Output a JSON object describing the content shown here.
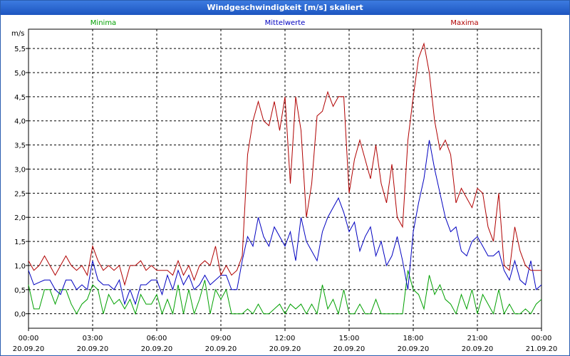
{
  "window": {
    "title": "Windgeschwindigkeit [m/s] skaliert"
  },
  "chart_data": {
    "type": "line",
    "title": "Windgeschwindigkeit [m/s] skaliert",
    "ylabel": "m/s",
    "xlabel": "",
    "ylim": [
      -0.3,
      5.9
    ],
    "xlim": [
      0,
      24
    ],
    "grid": true,
    "yticks": [
      "0,0",
      "0,5",
      "1,0",
      "1,5",
      "2,0",
      "2,5",
      "3,0",
      "3,5",
      "4,0",
      "4,5",
      "5,0",
      "5,5"
    ],
    "yticks_values": [
      0,
      0.5,
      1.0,
      1.5,
      2.0,
      2.5,
      3.0,
      3.5,
      4.0,
      4.5,
      5.0,
      5.5
    ],
    "xticks": [
      {
        "time": "00:00",
        "date": "20.09.20"
      },
      {
        "time": "03:00",
        "date": "20.09.20"
      },
      {
        "time": "06:00",
        "date": "20.09.20"
      },
      {
        "time": "09:00",
        "date": "20.09.20"
      },
      {
        "time": "12:00",
        "date": "20.09.20"
      },
      {
        "time": "15:00",
        "date": "20.09.20"
      },
      {
        "time": "18:00",
        "date": "20.09.20"
      },
      {
        "time": "21:00",
        "date": "20.09.20"
      },
      {
        "time": "00:00",
        "date": "21.09.20"
      }
    ],
    "xticks_values": [
      0,
      3,
      6,
      9,
      12,
      15,
      18,
      21,
      24
    ],
    "series": [
      {
        "name": "Minima",
        "color": "#00a000",
        "points": [
          [
            0,
            0.6
          ],
          [
            0.25,
            0.1
          ],
          [
            0.5,
            0.1
          ],
          [
            0.75,
            0.5
          ],
          [
            1,
            0.5
          ],
          [
            1.25,
            0.2
          ],
          [
            1.5,
            0.5
          ],
          [
            1.75,
            0.5
          ],
          [
            2,
            0.2
          ],
          [
            2.25,
            0.0
          ],
          [
            2.5,
            0.2
          ],
          [
            2.75,
            0.3
          ],
          [
            3,
            0.6
          ],
          [
            3.25,
            0.5
          ],
          [
            3.5,
            0.0
          ],
          [
            3.75,
            0.4
          ],
          [
            4,
            0.2
          ],
          [
            4.25,
            0.3
          ],
          [
            4.5,
            0.1
          ],
          [
            4.75,
            0.3
          ],
          [
            5,
            0.0
          ],
          [
            5.25,
            0.4
          ],
          [
            5.5,
            0.2
          ],
          [
            5.75,
            0.2
          ],
          [
            6,
            0.4
          ],
          [
            6.25,
            0.0
          ],
          [
            6.5,
            0.3
          ],
          [
            6.75,
            0.0
          ],
          [
            7,
            0.6
          ],
          [
            7.25,
            0.0
          ],
          [
            7.5,
            0.5
          ],
          [
            7.75,
            0.0
          ],
          [
            8,
            0.3
          ],
          [
            8.25,
            0.7
          ],
          [
            8.5,
            0.0
          ],
          [
            8.75,
            0.5
          ],
          [
            9,
            0.3
          ],
          [
            9.25,
            0.5
          ],
          [
            9.5,
            0.0
          ],
          [
            9.75,
            0.0
          ],
          [
            10,
            0.0
          ],
          [
            10.25,
            0.1
          ],
          [
            10.5,
            0.0
          ],
          [
            10.75,
            0.2
          ],
          [
            11,
            0.0
          ],
          [
            11.25,
            0.0
          ],
          [
            11.5,
            0.1
          ],
          [
            11.75,
            0.2
          ],
          [
            12,
            0.0
          ],
          [
            12.25,
            0.2
          ],
          [
            12.5,
            0.1
          ],
          [
            12.75,
            0.2
          ],
          [
            13,
            0.0
          ],
          [
            13.25,
            0.2
          ],
          [
            13.5,
            0.0
          ],
          [
            13.75,
            0.6
          ],
          [
            14,
            0.1
          ],
          [
            14.25,
            0.3
          ],
          [
            14.5,
            0.0
          ],
          [
            14.75,
            0.5
          ],
          [
            15,
            0.0
          ],
          [
            15.25,
            0.0
          ],
          [
            15.5,
            0.2
          ],
          [
            15.75,
            0.0
          ],
          [
            16,
            0.0
          ],
          [
            16.25,
            0.3
          ],
          [
            16.5,
            0.0
          ],
          [
            16.75,
            0.0
          ],
          [
            17,
            0.0
          ],
          [
            17.25,
            0.0
          ],
          [
            17.5,
            0.0
          ],
          [
            17.75,
            0.9
          ],
          [
            18,
            0.5
          ],
          [
            18.25,
            0.4
          ],
          [
            18.5,
            0.1
          ],
          [
            18.75,
            0.8
          ],
          [
            19,
            0.4
          ],
          [
            19.25,
            0.6
          ],
          [
            19.5,
            0.3
          ],
          [
            19.75,
            0.2
          ],
          [
            20,
            0.0
          ],
          [
            20.25,
            0.4
          ],
          [
            20.5,
            0.1
          ],
          [
            20.75,
            0.5
          ],
          [
            21,
            0.0
          ],
          [
            21.25,
            0.4
          ],
          [
            21.5,
            0.2
          ],
          [
            21.75,
            0.0
          ],
          [
            22,
            0.5
          ],
          [
            22.25,
            0.0
          ],
          [
            22.5,
            0.2
          ],
          [
            22.75,
            0.0
          ],
          [
            23,
            0.0
          ],
          [
            23.25,
            0.1
          ],
          [
            23.5,
            0.0
          ],
          [
            23.75,
            0.2
          ],
          [
            24,
            0.3
          ]
        ]
      },
      {
        "name": "Mittelwerte",
        "color": "#0000c0",
        "points": [
          [
            0,
            0.9
          ],
          [
            0.25,
            0.6
          ],
          [
            0.5,
            0.65
          ],
          [
            0.75,
            0.7
          ],
          [
            1,
            0.7
          ],
          [
            1.25,
            0.5
          ],
          [
            1.5,
            0.4
          ],
          [
            1.75,
            0.7
          ],
          [
            2,
            0.7
          ],
          [
            2.25,
            0.5
          ],
          [
            2.5,
            0.6
          ],
          [
            2.75,
            0.5
          ],
          [
            3,
            1.1
          ],
          [
            3.25,
            0.7
          ],
          [
            3.5,
            0.6
          ],
          [
            3.75,
            0.6
          ],
          [
            4,
            0.5
          ],
          [
            4.25,
            0.7
          ],
          [
            4.5,
            0.2
          ],
          [
            4.75,
            0.5
          ],
          [
            5,
            0.2
          ],
          [
            5.25,
            0.6
          ],
          [
            5.5,
            0.6
          ],
          [
            5.75,
            0.7
          ],
          [
            6,
            0.7
          ],
          [
            6.25,
            0.4
          ],
          [
            6.5,
            0.8
          ],
          [
            6.75,
            0.5
          ],
          [
            7,
            0.9
          ],
          [
            7.25,
            0.6
          ],
          [
            7.5,
            0.8
          ],
          [
            7.75,
            0.5
          ],
          [
            8,
            0.6
          ],
          [
            8.25,
            0.8
          ],
          [
            8.5,
            0.6
          ],
          [
            8.75,
            0.7
          ],
          [
            9,
            0.8
          ],
          [
            9.25,
            0.8
          ],
          [
            9.5,
            0.5
          ],
          [
            9.75,
            0.5
          ],
          [
            10,
            1.1
          ],
          [
            10.25,
            1.6
          ],
          [
            10.5,
            1.4
          ],
          [
            10.75,
            2.0
          ],
          [
            11,
            1.6
          ],
          [
            11.25,
            1.4
          ],
          [
            11.5,
            1.8
          ],
          [
            11.75,
            1.6
          ],
          [
            12,
            1.4
          ],
          [
            12.25,
            1.7
          ],
          [
            12.5,
            1.1
          ],
          [
            12.75,
            2.0
          ],
          [
            13,
            1.5
          ],
          [
            13.25,
            1.3
          ],
          [
            13.5,
            1.1
          ],
          [
            13.75,
            1.7
          ],
          [
            14,
            2.0
          ],
          [
            14.25,
            2.2
          ],
          [
            14.5,
            2.4
          ],
          [
            14.75,
            2.1
          ],
          [
            15,
            1.7
          ],
          [
            15.25,
            1.9
          ],
          [
            15.5,
            1.3
          ],
          [
            15.75,
            1.6
          ],
          [
            16,
            1.8
          ],
          [
            16.25,
            1.2
          ],
          [
            16.5,
            1.5
          ],
          [
            16.75,
            1.0
          ],
          [
            17,
            1.2
          ],
          [
            17.25,
            1.6
          ],
          [
            17.5,
            1.1
          ],
          [
            17.75,
            0.5
          ],
          [
            18,
            1.7
          ],
          [
            18.25,
            2.3
          ],
          [
            18.5,
            2.8
          ],
          [
            18.75,
            3.6
          ],
          [
            19,
            3.0
          ],
          [
            19.25,
            2.5
          ],
          [
            19.5,
            2.0
          ],
          [
            19.75,
            1.7
          ],
          [
            20,
            1.8
          ],
          [
            20.25,
            1.3
          ],
          [
            20.5,
            1.2
          ],
          [
            20.75,
            1.5
          ],
          [
            21,
            1.6
          ],
          [
            21.25,
            1.4
          ],
          [
            21.5,
            1.2
          ],
          [
            21.75,
            1.2
          ],
          [
            22,
            1.3
          ],
          [
            22.25,
            0.9
          ],
          [
            22.5,
            0.7
          ],
          [
            22.75,
            1.1
          ],
          [
            23,
            0.7
          ],
          [
            23.25,
            0.6
          ],
          [
            23.5,
            1.1
          ],
          [
            23.75,
            0.5
          ],
          [
            24,
            0.6
          ]
        ]
      },
      {
        "name": "Maxima",
        "color": "#b00000",
        "points": [
          [
            0,
            1.1
          ],
          [
            0.25,
            0.9
          ],
          [
            0.5,
            1.0
          ],
          [
            0.75,
            1.2
          ],
          [
            1,
            1.0
          ],
          [
            1.25,
            0.8
          ],
          [
            1.5,
            1.0
          ],
          [
            1.75,
            1.2
          ],
          [
            2,
            1.0
          ],
          [
            2.25,
            0.9
          ],
          [
            2.5,
            1.0
          ],
          [
            2.75,
            0.8
          ],
          [
            3,
            1.4
          ],
          [
            3.25,
            1.1
          ],
          [
            3.5,
            0.9
          ],
          [
            3.75,
            1.0
          ],
          [
            4,
            0.9
          ],
          [
            4.25,
            1.0
          ],
          [
            4.5,
            0.6
          ],
          [
            4.75,
            1.0
          ],
          [
            5,
            1.0
          ],
          [
            5.25,
            1.1
          ],
          [
            5.5,
            0.9
          ],
          [
            5.75,
            1.0
          ],
          [
            6,
            0.9
          ],
          [
            6.25,
            0.9
          ],
          [
            6.5,
            0.9
          ],
          [
            6.75,
            0.8
          ],
          [
            7,
            1.1
          ],
          [
            7.25,
            0.8
          ],
          [
            7.5,
            1.0
          ],
          [
            7.75,
            0.7
          ],
          [
            8,
            1.0
          ],
          [
            8.25,
            1.1
          ],
          [
            8.5,
            1.0
          ],
          [
            8.75,
            1.4
          ],
          [
            9,
            0.8
          ],
          [
            9.25,
            1.0
          ],
          [
            9.5,
            0.8
          ],
          [
            9.75,
            0.9
          ],
          [
            10,
            1.2
          ],
          [
            10.25,
            3.3
          ],
          [
            10.5,
            4.0
          ],
          [
            10.75,
            4.4
          ],
          [
            11,
            4.0
          ],
          [
            11.25,
            3.9
          ],
          [
            11.5,
            4.4
          ],
          [
            11.75,
            3.8
          ],
          [
            12,
            4.5
          ],
          [
            12.25,
            2.7
          ],
          [
            12.5,
            4.5
          ],
          [
            12.75,
            3.8
          ],
          [
            13,
            2.0
          ],
          [
            13.25,
            2.7
          ],
          [
            13.5,
            4.1
          ],
          [
            13.75,
            4.2
          ],
          [
            14,
            4.6
          ],
          [
            14.25,
            4.3
          ],
          [
            14.5,
            4.5
          ],
          [
            14.75,
            4.5
          ],
          [
            15,
            2.5
          ],
          [
            15.25,
            3.2
          ],
          [
            15.5,
            3.6
          ],
          [
            15.75,
            3.2
          ],
          [
            16,
            2.8
          ],
          [
            16.25,
            3.5
          ],
          [
            16.5,
            2.7
          ],
          [
            16.75,
            2.3
          ],
          [
            17,
            3.1
          ],
          [
            17.25,
            2.0
          ],
          [
            17.5,
            1.8
          ],
          [
            17.75,
            3.6
          ],
          [
            18,
            4.5
          ],
          [
            18.25,
            5.3
          ],
          [
            18.5,
            5.6
          ],
          [
            18.75,
            5.0
          ],
          [
            19,
            4.0
          ],
          [
            19.25,
            3.4
          ],
          [
            19.5,
            3.6
          ],
          [
            19.75,
            3.3
          ],
          [
            20,
            2.3
          ],
          [
            20.25,
            2.6
          ],
          [
            20.5,
            2.4
          ],
          [
            20.75,
            2.2
          ],
          [
            21,
            2.6
          ],
          [
            21.25,
            2.5
          ],
          [
            21.5,
            1.8
          ],
          [
            21.75,
            1.5
          ],
          [
            22,
            2.5
          ],
          [
            22.25,
            1.0
          ],
          [
            22.5,
            0.9
          ],
          [
            22.75,
            1.8
          ],
          [
            23,
            1.3
          ],
          [
            23.25,
            1.0
          ],
          [
            23.5,
            0.9
          ],
          [
            23.75,
            0.9
          ],
          [
            24,
            0.9
          ]
        ]
      }
    ]
  }
}
